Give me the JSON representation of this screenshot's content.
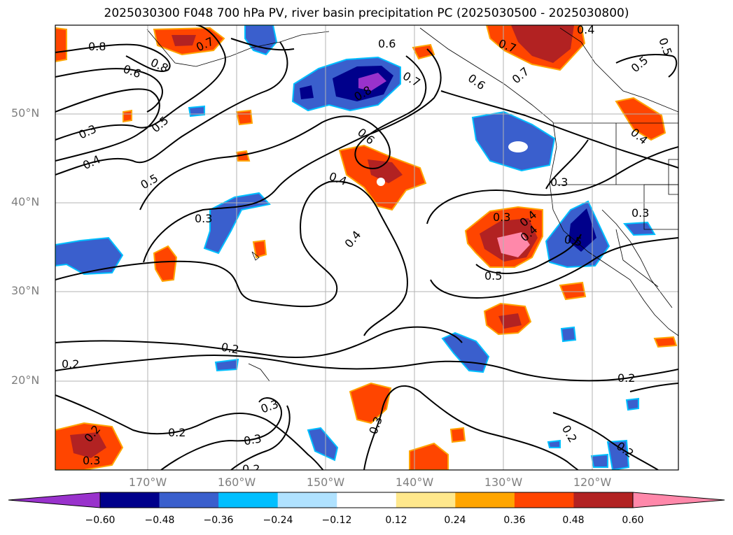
{
  "title": "2025030300 F048 700 hPa PV, river basin precipitation PC (2025030500 - 2025030800)",
  "lat_labels": [
    "50°N",
    "40°N",
    "30°N",
    "20°N"
  ],
  "lon_labels": [
    "170°W",
    "160°W",
    "150°W",
    "140°W",
    "130°W",
    "120°W"
  ],
  "colorbar": {
    "ticks": [
      "−0.60",
      "−0.48",
      "−0.36",
      "−0.24",
      "−0.12",
      "0.12",
      "0.24",
      "0.36",
      "0.48",
      "0.60"
    ],
    "colors": [
      "#9932cc",
      "#00008b",
      "#3a5fcd",
      "#00bfff",
      "#b0e2ff",
      "#ffffff",
      "#ffe88c",
      "#ffa500",
      "#ff4500",
      "#b22222",
      "#ff88aa"
    ]
  },
  "contour_labels": [
    "0.8",
    "0.7",
    "0.6",
    "0.8",
    "0.3",
    "0.4",
    "0.5",
    "0.5",
    "0.3",
    "0.6",
    "0.7",
    "0.8",
    "0.6",
    "0.4",
    "0.4",
    "0.7",
    "0.6",
    "0.7",
    "0.4",
    "0.5",
    "0.5",
    "0.4",
    "0.3",
    "0.3",
    "0.3",
    "0.4",
    "0.5",
    "0.5",
    "0.2",
    "0.2",
    "0.2",
    "0.3",
    "0.3",
    "0.3",
    "0.2",
    "0.2",
    "0.2",
    "0.3",
    "0.2",
    "0.2",
    "0.4"
  ]
}
